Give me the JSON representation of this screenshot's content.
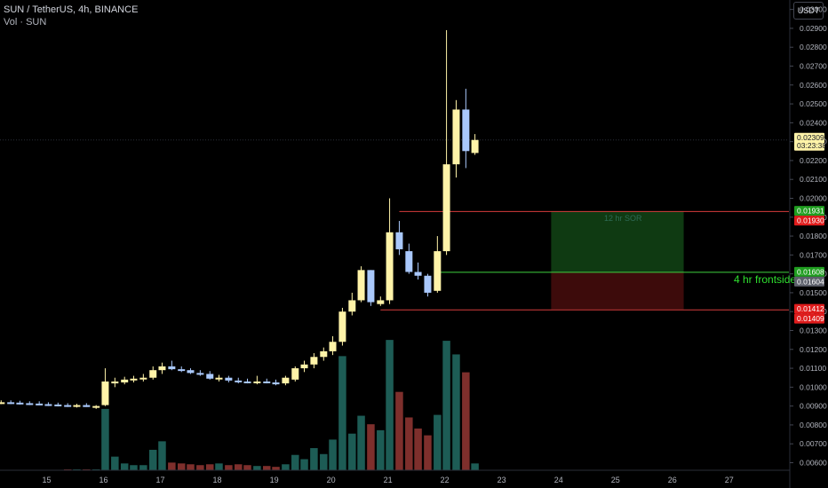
{
  "header": {
    "symbol_line": "SUN / TetherUS, 4h, BINANCE",
    "volume_line": "Vol · SUN"
  },
  "currency_button": "USDT",
  "colors": {
    "up": "#fff3a8",
    "down": "#a9c8fb",
    "vol_up": "#1d5c55",
    "vol_down": "#7e2f2c",
    "zone_green": "#0f3a12",
    "zone_red": "#3d0b0b",
    "line_red": "#d63c3c",
    "line_green": "#3fcf3f",
    "label_green": "#1f9d1f",
    "label_red": "#e01c1c",
    "label_gray": "#5d606b",
    "label_price": "#fff3a8",
    "text_green": "#2fe02f"
  },
  "chart_data": {
    "type": "candlestick",
    "y_ticks": [
      "0.03000",
      "0.02900",
      "0.02800",
      "0.02700",
      "0.02600",
      "0.02500",
      "0.02400",
      "0.02300",
      "0.02200",
      "0.02100",
      "0.02000",
      "0.01900",
      "0.01800",
      "0.01700",
      "0.01600",
      "0.01500",
      "0.01400",
      "0.01300",
      "0.01200",
      "0.01100",
      "0.01000",
      "0.00900",
      "0.00800",
      "0.00700",
      "0.00600"
    ],
    "ylim": [
      0.0056,
      0.0305
    ],
    "x_labels": [
      "15",
      "16",
      "17",
      "18",
      "19",
      "20",
      "21",
      "22",
      "23",
      "24",
      "25",
      "26",
      "27"
    ],
    "x_label_days": [
      15,
      16,
      17,
      18,
      19,
      20,
      21,
      22,
      23,
      24,
      25,
      26,
      27
    ],
    "x_range_days": [
      14.18,
      28.05
    ],
    "candles": [
      {
        "t": 14.2,
        "o": 0.0092,
        "h": 0.0093,
        "l": 0.0091,
        "c": 0.0092,
        "v": 0
      },
      {
        "t": 14.37,
        "o": 0.0092,
        "h": 0.0093,
        "l": 0.0091,
        "c": 0.00918,
        "v": 0
      },
      {
        "t": 14.53,
        "o": 0.00918,
        "h": 0.00928,
        "l": 0.00908,
        "c": 0.00915,
        "v": 0
      },
      {
        "t": 14.7,
        "o": 0.00915,
        "h": 0.00925,
        "l": 0.00905,
        "c": 0.00913,
        "v": 0
      },
      {
        "t": 14.87,
        "o": 0.00913,
        "h": 0.00925,
        "l": 0.00905,
        "c": 0.0091,
        "v": 0
      },
      {
        "t": 15.03,
        "o": 0.0091,
        "h": 0.0092,
        "l": 0.009,
        "c": 0.00908,
        "v": 0
      },
      {
        "t": 15.2,
        "o": 0.00908,
        "h": 0.00918,
        "l": 0.00898,
        "c": 0.00905,
        "v": 0
      },
      {
        "t": 15.37,
        "o": 0.00905,
        "h": 0.00915,
        "l": 0.00895,
        "c": 0.009,
        "v": 0.1
      },
      {
        "t": 15.53,
        "o": 0.009,
        "h": 0.00912,
        "l": 0.00892,
        "c": 0.00905,
        "v": 0.1
      },
      {
        "t": 15.7,
        "o": 0.00905,
        "h": 0.00915,
        "l": 0.00895,
        "c": 0.00895,
        "v": 0.1
      },
      {
        "t": 15.87,
        "o": 0.00895,
        "h": 0.00905,
        "l": 0.00885,
        "c": 0.009,
        "v": 0.1
      },
      {
        "t": 16.03,
        "o": 0.00905,
        "h": 0.011,
        "l": 0.009,
        "c": 0.0103,
        "v": 7.2
      },
      {
        "t": 16.2,
        "o": 0.0102,
        "h": 0.0105,
        "l": 0.01,
        "c": 0.0103,
        "v": 1.6
      },
      {
        "t": 16.37,
        "o": 0.01025,
        "h": 0.01055,
        "l": 0.01015,
        "c": 0.0104,
        "v": 0.8
      },
      {
        "t": 16.53,
        "o": 0.0104,
        "h": 0.0106,
        "l": 0.01025,
        "c": 0.01045,
        "v": 0.6
      },
      {
        "t": 16.7,
        "o": 0.01045,
        "h": 0.0107,
        "l": 0.0103,
        "c": 0.0105,
        "v": 0.6
      },
      {
        "t": 16.87,
        "o": 0.0105,
        "h": 0.0111,
        "l": 0.0104,
        "c": 0.0109,
        "v": 2.4
      },
      {
        "t": 17.03,
        "o": 0.0109,
        "h": 0.0113,
        "l": 0.0107,
        "c": 0.0111,
        "v": 3.4
      },
      {
        "t": 17.2,
        "o": 0.0111,
        "h": 0.0114,
        "l": 0.0109,
        "c": 0.01095,
        "v": 0.9
      },
      {
        "t": 17.37,
        "o": 0.01095,
        "h": 0.0111,
        "l": 0.0108,
        "c": 0.0109,
        "v": 0.8
      },
      {
        "t": 17.53,
        "o": 0.0109,
        "h": 0.011,
        "l": 0.0107,
        "c": 0.01075,
        "v": 0.7
      },
      {
        "t": 17.7,
        "o": 0.01075,
        "h": 0.0109,
        "l": 0.0106,
        "c": 0.0107,
        "v": 0.6
      },
      {
        "t": 17.87,
        "o": 0.0107,
        "h": 0.01085,
        "l": 0.0104,
        "c": 0.01045,
        "v": 0.7
      },
      {
        "t": 18.03,
        "o": 0.01045,
        "h": 0.01065,
        "l": 0.0103,
        "c": 0.0105,
        "v": 0.8
      },
      {
        "t": 18.2,
        "o": 0.0105,
        "h": 0.0106,
        "l": 0.01025,
        "c": 0.01035,
        "v": 0.6
      },
      {
        "t": 18.37,
        "o": 0.01035,
        "h": 0.0105,
        "l": 0.0102,
        "c": 0.0103,
        "v": 0.7
      },
      {
        "t": 18.53,
        "o": 0.0103,
        "h": 0.01045,
        "l": 0.0102,
        "c": 0.01025,
        "v": 0.6
      },
      {
        "t": 18.7,
        "o": 0.01025,
        "h": 0.0106,
        "l": 0.01015,
        "c": 0.0103,
        "v": 0.5
      },
      {
        "t": 18.87,
        "o": 0.0103,
        "h": 0.01045,
        "l": 0.0102,
        "c": 0.01025,
        "v": 0.5
      },
      {
        "t": 19.03,
        "o": 0.01025,
        "h": 0.0104,
        "l": 0.0101,
        "c": 0.01015,
        "v": 0.4
      },
      {
        "t": 19.2,
        "o": 0.0102,
        "h": 0.0106,
        "l": 0.0101,
        "c": 0.0105,
        "v": 0.7
      },
      {
        "t": 19.37,
        "o": 0.0104,
        "h": 0.0111,
        "l": 0.0103,
        "c": 0.011,
        "v": 1.8
      },
      {
        "t": 19.53,
        "o": 0.011,
        "h": 0.0114,
        "l": 0.0108,
        "c": 0.0112,
        "v": 1.3
      },
      {
        "t": 19.7,
        "o": 0.0112,
        "h": 0.0118,
        "l": 0.011,
        "c": 0.0116,
        "v": 2.6
      },
      {
        "t": 19.87,
        "o": 0.0116,
        "h": 0.0121,
        "l": 0.0114,
        "c": 0.0119,
        "v": 1.9
      },
      {
        "t": 20.03,
        "o": 0.0119,
        "h": 0.0127,
        "l": 0.0117,
        "c": 0.0124,
        "v": 3.6
      },
      {
        "t": 20.2,
        "o": 0.0124,
        "h": 0.0142,
        "l": 0.0122,
        "c": 0.014,
        "v": 13.4
      },
      {
        "t": 20.37,
        "o": 0.014,
        "h": 0.015,
        "l": 0.0138,
        "c": 0.0146,
        "v": 4.3
      },
      {
        "t": 20.53,
        "o": 0.0146,
        "h": 0.0164,
        "l": 0.0145,
        "c": 0.0162,
        "v": 6.4
      },
      {
        "t": 20.7,
        "o": 0.0162,
        "h": 0.0162,
        "l": 0.0143,
        "c": 0.0145,
        "v": 5.4
      },
      {
        "t": 20.87,
        "o": 0.0144,
        "h": 0.0148,
        "l": 0.0143,
        "c": 0.0146,
        "v": 4.7
      },
      {
        "t": 21.03,
        "o": 0.0146,
        "h": 0.02,
        "l": 0.0144,
        "c": 0.0182,
        "v": 15.3
      },
      {
        "t": 21.2,
        "o": 0.0182,
        "h": 0.0188,
        "l": 0.017,
        "c": 0.0173,
        "v": 9.2
      },
      {
        "t": 21.37,
        "o": 0.0172,
        "h": 0.0176,
        "l": 0.016,
        "c": 0.0161,
        "v": 6.2
      },
      {
        "t": 21.53,
        "o": 0.0161,
        "h": 0.0166,
        "l": 0.0157,
        "c": 0.0159,
        "v": 4.9
      },
      {
        "t": 21.7,
        "o": 0.0159,
        "h": 0.016,
        "l": 0.0148,
        "c": 0.015,
        "v": 4.1
      },
      {
        "t": 21.87,
        "o": 0.0151,
        "h": 0.018,
        "l": 0.015,
        "c": 0.0172,
        "v": 6.5
      },
      {
        "t": 22.03,
        "o": 0.0172,
        "h": 0.0289,
        "l": 0.017,
        "c": 0.0218,
        "v": 15.2
      },
      {
        "t": 22.2,
        "o": 0.0218,
        "h": 0.0252,
        "l": 0.0211,
        "c": 0.0247,
        "v": 13.6
      },
      {
        "t": 22.37,
        "o": 0.0247,
        "h": 0.0258,
        "l": 0.0216,
        "c": 0.0225,
        "v": 11.5
      },
      {
        "t": 22.53,
        "o": 0.0224,
        "h": 0.0234,
        "l": 0.0223,
        "c": 0.02309,
        "v": 0.8
      }
    ],
    "position_tool": {
      "label": "12 hr SOR",
      "t_start": 23.87,
      "t_end": 26.2,
      "target": 0.01931,
      "entry": 0.01608,
      "stop": 0.01412
    },
    "lines": [
      {
        "price": 0.0193,
        "t_start": 21.2,
        "color": "red"
      },
      {
        "price": 0.01608,
        "t_start": 21.87,
        "color": "green"
      },
      {
        "price": 0.01409,
        "t_start": 20.87,
        "color": "red"
      }
    ],
    "annotation": {
      "text": "4 hr frontside",
      "price": 0.01608
    },
    "price_labels": [
      {
        "text": "0.01931",
        "price": 0.01931,
        "kind": "green"
      },
      {
        "text": "0.01930",
        "price": 0.0193,
        "kind": "red"
      },
      {
        "text": "0.01608",
        "price": 0.01608,
        "kind": "green"
      },
      {
        "text": "0.01604",
        "price": 0.01604,
        "kind": "gray"
      },
      {
        "text": "0.01412",
        "price": 0.01412,
        "kind": "red"
      },
      {
        "text": "0.01409",
        "price": 0.01409,
        "kind": "red"
      }
    ],
    "last_price": {
      "value": "0.02309",
      "countdown": "03:23:38",
      "price": 0.02309
    }
  }
}
